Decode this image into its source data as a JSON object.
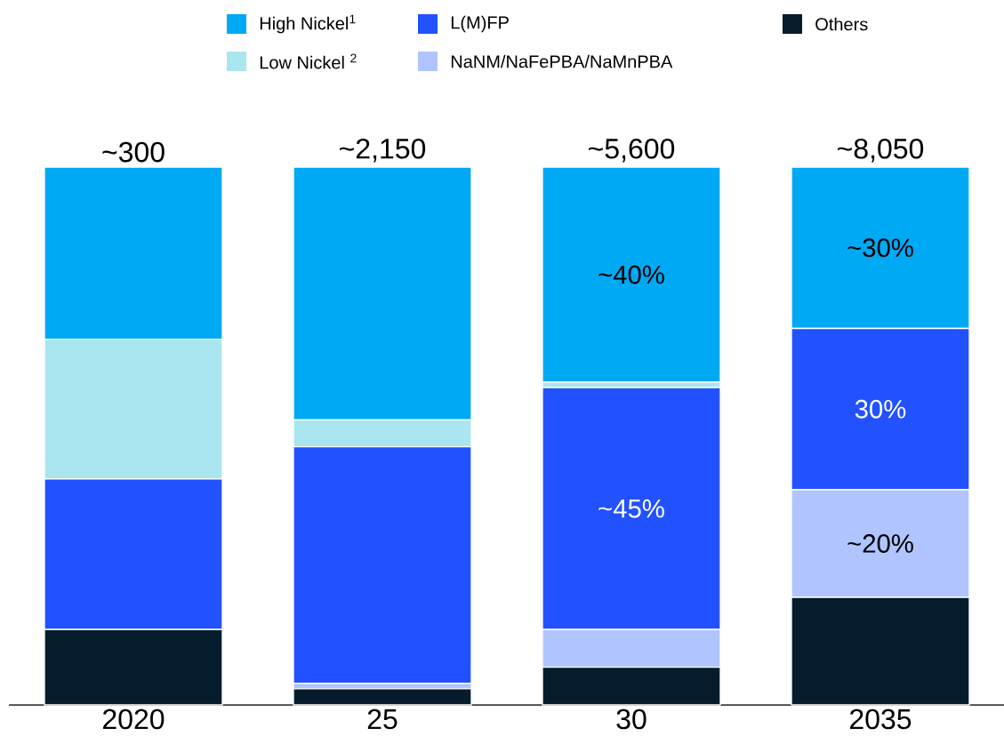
{
  "chart_data": {
    "type": "bar",
    "stacked": true,
    "legend": "top",
    "categories": [
      "2020",
      "25",
      "30",
      "2035"
    ],
    "series": [
      {
        "name": "Others",
        "color": "#051c2c",
        "values": [
          14,
          3,
          7,
          20
        ],
        "value_labels": [
          null,
          null,
          null,
          null
        ]
      },
      {
        "name": "NaNM/NaFePBA/NaMnPBA",
        "color": "#b0c4ff",
        "values": [
          0,
          1,
          7,
          20
        ],
        "value_labels": [
          null,
          null,
          null,
          "~20%"
        ]
      },
      {
        "name": "L(M)FP",
        "color": "#2251ff",
        "values": [
          28,
          44,
          45,
          30
        ],
        "value_labels": [
          null,
          null,
          "~45%",
          "30%"
        ]
      },
      {
        "name": "Low Nickel $^{2}$",
        "color": "#aae6ef",
        "values": [
          26,
          5,
          1,
          0
        ],
        "value_labels": [
          null,
          null,
          null,
          null
        ]
      },
      {
        "name": "High Nickel$^{1}$",
        "color": "#00a9f4",
        "values": [
          32,
          47,
          40,
          30
        ],
        "value_labels": [
          null,
          null,
          "~40%",
          "~30%"
        ]
      }
    ],
    "annotations": [
      {
        "text": "~300",
        "x": "2020",
        "y": 100
      },
      {
        "text": "~2,150",
        "x": "25",
        "y": 100
      },
      {
        "text": "~5,600",
        "x": "30",
        "y": 100
      },
      {
        "text": "~8,050",
        "x": "2035",
        "y": 100
      }
    ]
  }
}
